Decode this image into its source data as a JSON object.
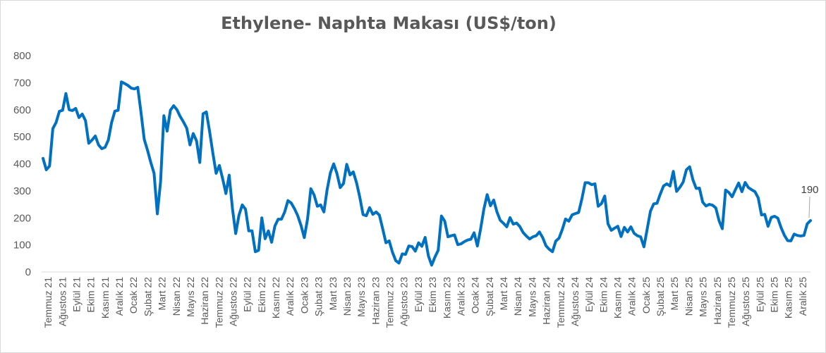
{
  "chart_data": {
    "type": "line",
    "title": "Ethylene- Naphta Makası (US$/ton)",
    "xlabel": "",
    "ylabel": "",
    "ylim": [
      0,
      800
    ],
    "yticks": [
      0,
      100,
      200,
      300,
      400,
      500,
      600,
      700,
      800
    ],
    "grid": false,
    "legend": "none",
    "line_color": "#0070C0",
    "month_labels": [
      "Temmuz 21",
      "Ağustos 21",
      "Eylül 21",
      "Ekim 21",
      "Kasım 21",
      "Aralık 21",
      "Ocak 22",
      "Şubat 22",
      "Mart 22",
      "Nisan 22",
      "Mayıs 22",
      "Haziran 22",
      "Temmuz 22",
      "Ağustos 22",
      "Eylül 22",
      "Ekim 22",
      "Kasım 22",
      "Aralık 22",
      "Ocak 23",
      "Şubat 23",
      "Mart 23",
      "Nisan 23",
      "Mayıs 23",
      "Haziran 23",
      "Temmuz 23",
      "Ağustos 23",
      "Eylül 23",
      "Ekim 23",
      "Kasım 23",
      "Aralık 23",
      "Ocak 24",
      "Şubat 24",
      "Mart 24",
      "Nisan 24",
      "Mayıs 24",
      "Haziran 24",
      "Temmuz 24",
      "Ağustos 24",
      "Eylül 24",
      "Ekim 24",
      "Kasım 24",
      "Aralık 24",
      "Ocak 25",
      "Şubat 25",
      "Mart 25",
      "Nisan 25",
      "Mayıs 25",
      "Haziran 25",
      "Temmuz 25",
      "Ağustos 25",
      "Eylül 25",
      "Ekim 25",
      "Kasım 25",
      "Aralık 25"
    ],
    "series": [
      {
        "values": [
          420,
          378,
          392,
          530,
          553,
          594,
          598,
          660,
          600,
          597,
          605,
          571,
          584,
          560,
          476,
          488,
          503,
          470,
          456,
          461,
          488,
          553,
          595,
          598,
          703,
          697,
          690,
          680,
          677,
          683,
          590,
          490,
          450,
          405,
          365,
          215,
          335,
          578,
          521,
          598,
          615,
          600,
          575,
          555,
          532,
          470,
          512,
          485,
          405,
          585,
          592,
          520,
          440,
          365,
          394,
          345,
          290,
          358,
          235,
          142,
          210,
          248,
          232,
          152,
          152,
          75,
          80,
          200,
          123,
          152,
          110,
          170,
          195,
          195,
          222,
          264,
          255,
          234,
          208,
          172,
          127,
          196,
          308,
          285,
          243,
          248,
          222,
          305,
          367,
          400,
          364,
          312,
          327,
          398,
          359,
          370,
          330,
          276,
          212,
          208,
          238,
          213,
          222,
          210,
          160,
          108,
          115,
          73,
          42,
          33,
          67,
          65,
          96,
          94,
          77,
          108,
          95,
          128,
          60,
          25,
          55,
          80,
          207,
          188,
          130,
          134,
          137,
          101,
          104,
          112,
          118,
          121,
          145,
          96,
          160,
          233,
          286,
          245,
          266,
          222,
          191,
          180,
          167,
          201,
          177,
          181,
          168,
          146,
          133,
          122,
          130,
          134,
          148,
          127,
          97,
          84,
          75,
          114,
          125,
          157,
          196,
          188,
          211,
          216,
          220,
          270,
          330,
          330,
          323,
          326,
          243,
          253,
          281,
          178,
          154,
          162,
          169,
          131,
          165,
          148,
          167,
          143,
          134,
          130,
          93,
          159,
          225,
          252,
          254,
          288,
          318,
          326,
          318,
          372,
          298,
          313,
          332,
          378,
          389,
          341,
          309,
          310,
          258,
          244,
          250,
          247,
          237,
          190,
          160,
          303,
          294,
          278,
          304,
          329,
          297,
          331,
          312,
          304,
          297,
          274,
          211,
          213,
          169,
          202,
          206,
          199,
          164,
          136,
          116,
          115,
          140,
          135,
          133,
          135,
          178,
          190
        ]
      }
    ],
    "data_label": "190"
  }
}
